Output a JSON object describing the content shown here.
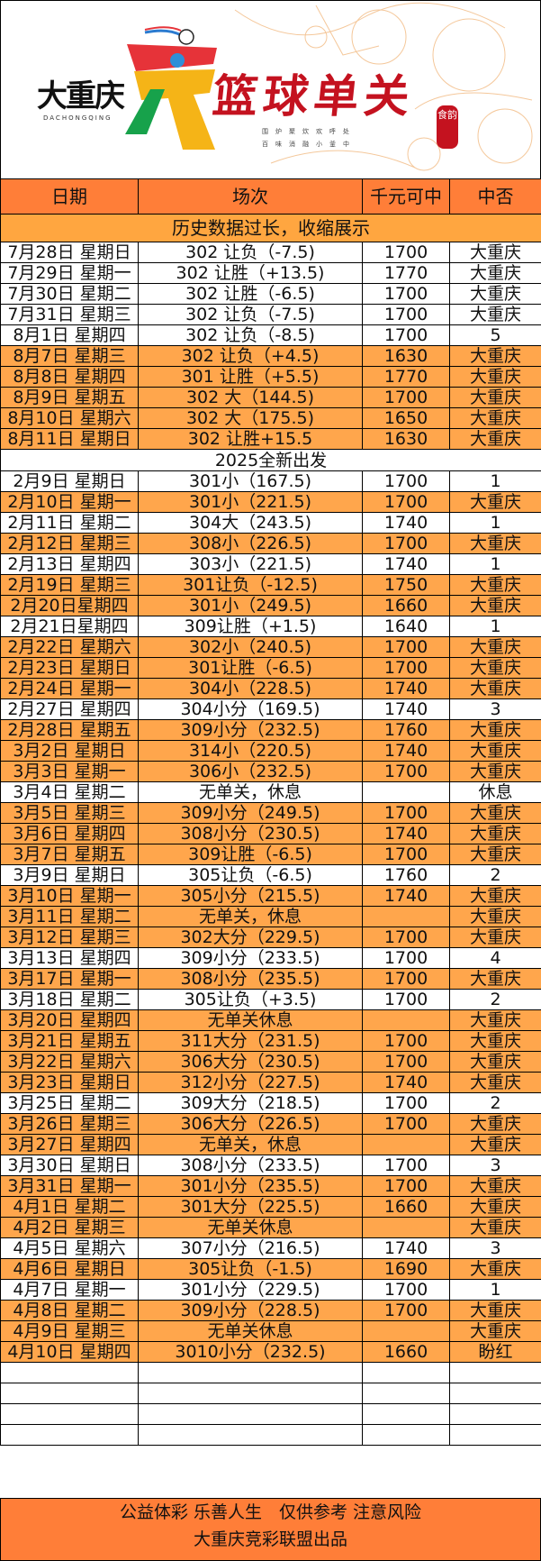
{
  "banner": {
    "logo_text": "大重庆",
    "logo_subtext": "DACHONGQING",
    "title": "篮球单关",
    "subtitle_line1": "围炉聚炊欢呼处",
    "subtitle_line2": "百味消融小釜中",
    "seal_text": "食韵",
    "colors": {
      "title": "#c4121f",
      "emblem_red": "#e63339",
      "emblem_yellow": "#f5b417",
      "emblem_green": "#17a24b"
    }
  },
  "table": {
    "headers": [
      "日期",
      "场次",
      "千元可中",
      "中否"
    ],
    "collapse_note": "历史数据过长，收缩展示",
    "history_rows": [
      {
        "date": "7月28日 星期日",
        "match": "302 让负（-7.5)",
        "amount": "1700",
        "result": "大重庆",
        "hl": false
      },
      {
        "date": "7月29日 星期一",
        "match": "302 让胜（+13.5)",
        "amount": "1770",
        "result": "大重庆",
        "hl": false
      },
      {
        "date": "7月30日 星期二",
        "match": "302 让胜（-6.5)",
        "amount": "1700",
        "result": "大重庆",
        "hl": false
      },
      {
        "date": "7月31日 星期三",
        "match": "302 让负（-7.5)",
        "amount": "1700",
        "result": "大重庆",
        "hl": false
      },
      {
        "date": "8月1日 星期四",
        "match": "302 让负（-8.5)",
        "amount": "1700",
        "result": "5",
        "hl": false
      },
      {
        "date": "8月7日 星期三",
        "match": "302 让负（+4.5)",
        "amount": "1630",
        "result": "大重庆",
        "hl": true
      },
      {
        "date": "8月8日 星期四",
        "match": "301 让胜（+5.5)",
        "amount": "1770",
        "result": "大重庆",
        "hl": true
      },
      {
        "date": "8月9日 星期五",
        "match": "302 大（144.5)",
        "amount": "1700",
        "result": "大重庆",
        "hl": true
      },
      {
        "date": "8月10日 星期六",
        "match": "302 大（175.5)",
        "amount": "1650",
        "result": "大重庆",
        "hl": true
      },
      {
        "date": "8月11日 星期日",
        "match": "302 让胜+15.5",
        "amount": "1630",
        "result": "大重庆",
        "hl": true
      }
    ],
    "separator": "2025全新出发",
    "rows": [
      {
        "date": "2月9日 星期日",
        "match": "301小（167.5)",
        "amount": "1700",
        "result": "1",
        "hl": false
      },
      {
        "date": "2月10日 星期一",
        "match": "301小（221.5)",
        "amount": "1700",
        "result": "大重庆",
        "hl": true
      },
      {
        "date": "2月11日 星期二",
        "match": "304大（243.5)",
        "amount": "1740",
        "result": "1",
        "hl": false
      },
      {
        "date": "2月12日 星期三",
        "match": "308小（226.5)",
        "amount": "1700",
        "result": "大重庆",
        "hl": true
      },
      {
        "date": "2月13日 星期四",
        "match": "303小（221.5)",
        "amount": "1740",
        "result": "1",
        "hl": false
      },
      {
        "date": "2月19日 星期三",
        "match": "301让负（-12.5)",
        "amount": "1750",
        "result": "大重庆",
        "hl": true
      },
      {
        "date": "2月20日星期四",
        "match": "301小（249.5)",
        "amount": "1660",
        "result": "大重庆",
        "hl": true
      },
      {
        "date": "2月21日星期四",
        "match": "309让胜（+1.5)",
        "amount": "1640",
        "result": "1",
        "hl": false
      },
      {
        "date": "2月22日 星期六",
        "match": "302小（240.5)",
        "amount": "1700",
        "result": "大重庆",
        "hl": true
      },
      {
        "date": "2月23日 星期日",
        "match": "301让胜（-6.5)",
        "amount": "1700",
        "result": "大重庆",
        "hl": true
      },
      {
        "date": "2月24日 星期一",
        "match": "304小（228.5)",
        "amount": "1740",
        "result": "大重庆",
        "hl": true
      },
      {
        "date": "2月27日 星期四",
        "match": "304小分（169.5)",
        "amount": "1740",
        "result": "3",
        "hl": false
      },
      {
        "date": "2月28日 星期五",
        "match": "309小分（232.5)",
        "amount": "1760",
        "result": "大重庆",
        "hl": true
      },
      {
        "date": "3月2日 星期日",
        "match": "314小（220.5)",
        "amount": "1740",
        "result": "大重庆",
        "hl": true
      },
      {
        "date": "3月3日 星期一",
        "match": "306小（232.5)",
        "amount": "1700",
        "result": "大重庆",
        "hl": true
      },
      {
        "date": "3月4日 星期二",
        "match": "无单关，休息",
        "amount": "",
        "result": "休息",
        "hl": false
      },
      {
        "date": "3月5日 星期三",
        "match": "309小分（249.5)",
        "amount": "1700",
        "result": "大重庆",
        "hl": true
      },
      {
        "date": "3月6日 星期四",
        "match": "308小分（230.5)",
        "amount": "1740",
        "result": "大重庆",
        "hl": true
      },
      {
        "date": "3月7日 星期五",
        "match": "309让胜（-6.5)",
        "amount": "1700",
        "result": "大重庆",
        "hl": true
      },
      {
        "date": "3月9日 星期日",
        "match": "305让负（-6.5)",
        "amount": "1760",
        "result": "2",
        "hl": false
      },
      {
        "date": "3月10日 星期一",
        "match": "305小分（215.5)",
        "amount": "1740",
        "result": "大重庆",
        "hl": true
      },
      {
        "date": "3月11日 星期二",
        "match": "无单关，休息",
        "amount": "",
        "result": "大重庆",
        "hl": true
      },
      {
        "date": "3月12日 星期三",
        "match": "302大分（229.5)",
        "amount": "1700",
        "result": "大重庆",
        "hl": true
      },
      {
        "date": "3月13日 星期四",
        "match": "309小分（233.5)",
        "amount": "1700",
        "result": "4",
        "hl": false
      },
      {
        "date": "3月17日 星期一",
        "match": "308小分（235.5)",
        "amount": "1700",
        "result": "大重庆",
        "hl": true
      },
      {
        "date": "3月18日 星期二",
        "match": "305让负（+3.5)",
        "amount": "1700",
        "result": "2",
        "hl": false
      },
      {
        "date": "3月20日 星期四",
        "match": "无单关休息",
        "amount": "",
        "result": "大重庆",
        "hl": true
      },
      {
        "date": "3月21日 星期五",
        "match": "311大分（231.5)",
        "amount": "1700",
        "result": "大重庆",
        "hl": true
      },
      {
        "date": "3月22日 星期六",
        "match": "306大分（230.5)",
        "amount": "1700",
        "result": "大重庆",
        "hl": true
      },
      {
        "date": "3月23日 星期日",
        "match": "312小分（227.5)",
        "amount": "1740",
        "result": "大重庆",
        "hl": true
      },
      {
        "date": "3月25日 星期二",
        "match": "309大分（218.5)",
        "amount": "1700",
        "result": "2",
        "hl": false
      },
      {
        "date": "3月26日 星期三",
        "match": "306大分（226.5)",
        "amount": "1700",
        "result": "大重庆",
        "hl": true
      },
      {
        "date": "3月27日 星期四",
        "match": "无单关，休息",
        "amount": "",
        "result": "大重庆",
        "hl": true
      },
      {
        "date": "3月30日 星期日",
        "match": "308小分（233.5)",
        "amount": "1700",
        "result": "3",
        "hl": false
      },
      {
        "date": "3月31日 星期一",
        "match": "301小分（235.5)",
        "amount": "1700",
        "result": "大重庆",
        "hl": true
      },
      {
        "date": "4月1日 星期二",
        "match": "301大分（225.5)",
        "amount": "1660",
        "result": "大重庆",
        "hl": true
      },
      {
        "date": "4月2日 星期三",
        "match": "无单关休息",
        "amount": "",
        "result": "大重庆",
        "hl": true
      },
      {
        "date": "4月5日 星期六",
        "match": "307小分（216.5)",
        "amount": "1740",
        "result": "3",
        "hl": false
      },
      {
        "date": "4月6日 星期日",
        "match": "305让负（-1.5)",
        "amount": "1690",
        "result": "大重庆",
        "hl": true
      },
      {
        "date": "4月7日 星期一",
        "match": "301小分（229.5)",
        "amount": "1700",
        "result": "1",
        "hl": false
      },
      {
        "date": "4月8日 星期二",
        "match": "309小分（228.5)",
        "amount": "1700",
        "result": "大重庆",
        "hl": true
      },
      {
        "date": "4月9日 星期三",
        "match": "无单关休息",
        "amount": "",
        "result": "大重庆",
        "hl": true
      },
      {
        "date": "4月10日 星期四",
        "match": "3010小分（232.5)",
        "amount": "1660",
        "result": "盼红",
        "hl": true
      }
    ],
    "highlight_color": "#ffa64c",
    "header_color": "#ff7e38"
  },
  "footer": {
    "line1": "公益体彩 乐善人生　仅供参考 注意风险",
    "line2": "大重庆竞彩联盟出品"
  }
}
